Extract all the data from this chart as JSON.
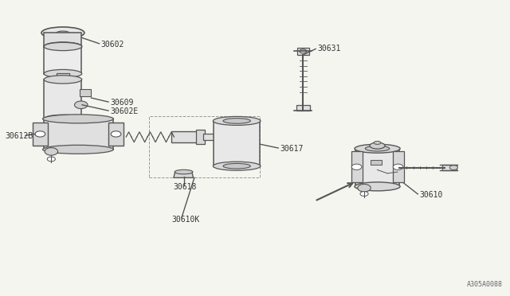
{
  "bg_color": "#f5f5f0",
  "line_color": "#555555",
  "text_color": "#333333",
  "diagram_id": "A305A0088",
  "parts": {
    "30602": {
      "label": "30602"
    },
    "30609": {
      "label": "30609"
    },
    "30602E": {
      "label": "30602E"
    },
    "30612B": {
      "label": "30612B"
    },
    "30617": {
      "label": "30617"
    },
    "30618": {
      "label": "30618"
    },
    "30610K": {
      "label": "30610K"
    },
    "30631": {
      "label": "30631"
    },
    "30610": {
      "label": "30610"
    }
  }
}
